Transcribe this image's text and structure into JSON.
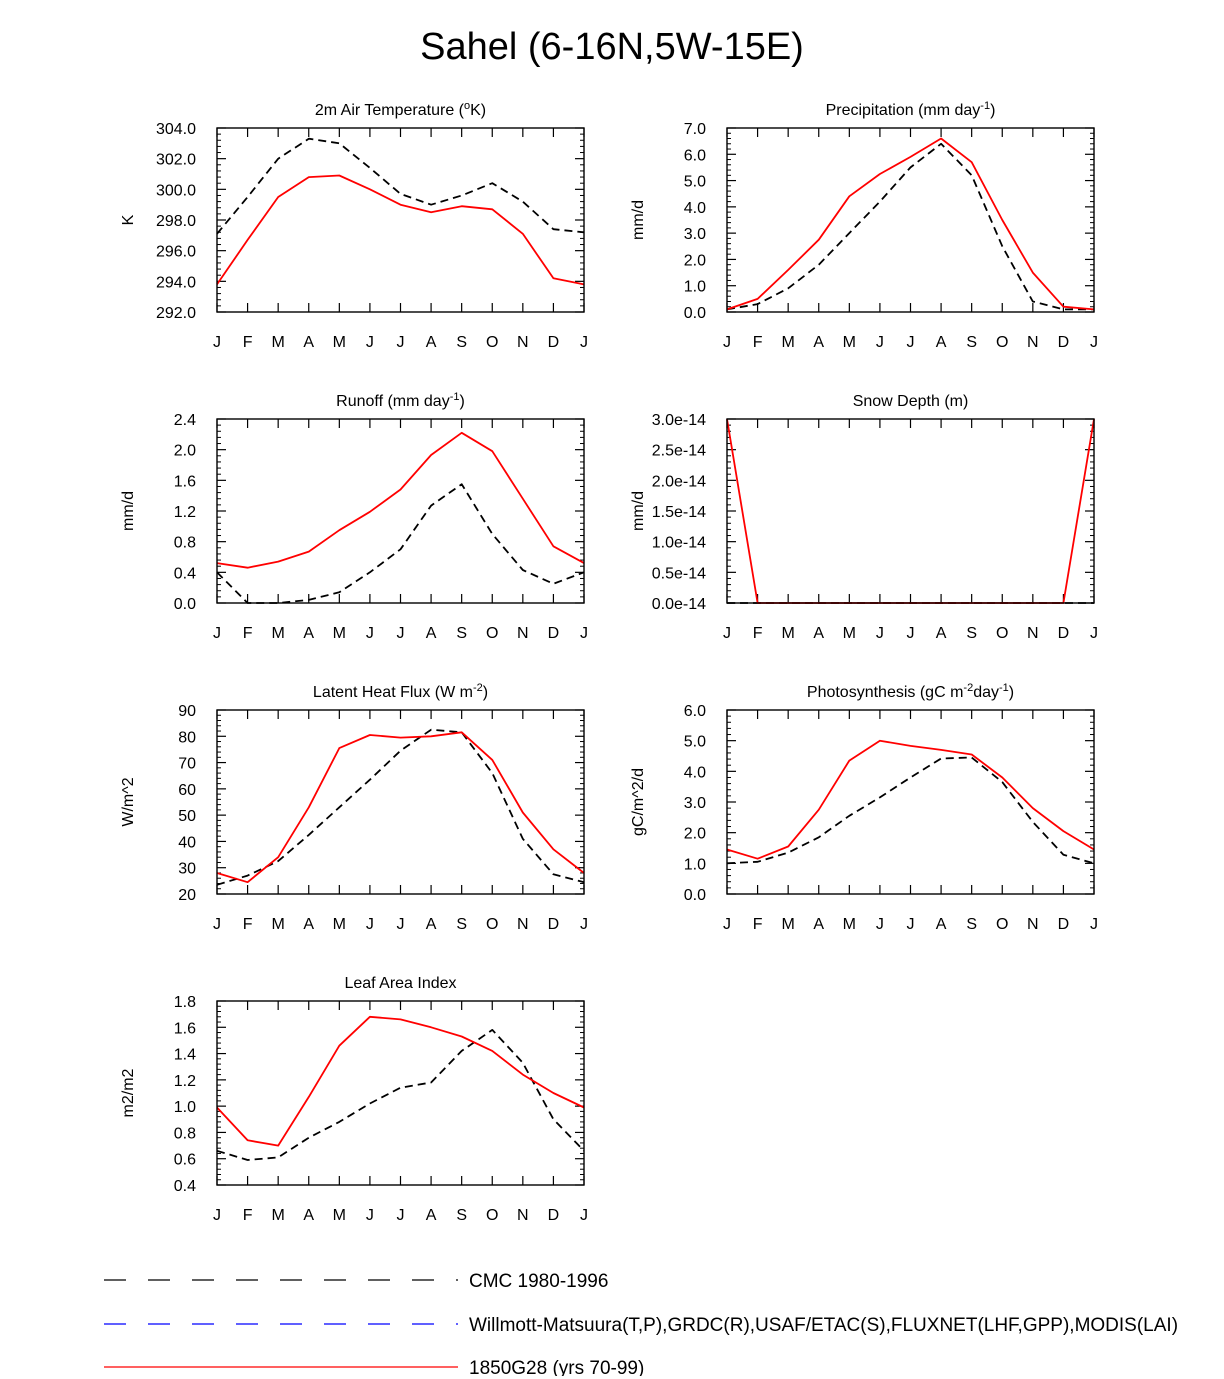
{
  "title": "Sahel (6-16N,5W-15E)",
  "months": [
    "J",
    "F",
    "M",
    "A",
    "M",
    "J",
    "J",
    "A",
    "S",
    "O",
    "N",
    "D",
    "J"
  ],
  "legend": [
    {
      "label": "CMC 1980-1996",
      "style": "dashed",
      "color": "#000000"
    },
    {
      "label": "Willmott-Matsuura(T,P),GRDC(R),USAF/ETAC(S),FLUXNET(LHF,GPP),MODIS(LAI)",
      "style": "dashed",
      "color": "#0000ff"
    },
    {
      "label": "1850G28 (yrs 70-99)",
      "style": "solid",
      "color": "#ff0000"
    }
  ],
  "chart_data": [
    {
      "type": "line",
      "title": "2m Air Temperature (oK)",
      "title_parts": [
        {
          "text": "2m Air Temperature ("
        },
        {
          "text": "o",
          "sup": true
        },
        {
          "text": "K)"
        }
      ],
      "ylabel": "K",
      "ylim": [
        292,
        304
      ],
      "yticks": [
        292,
        294,
        296,
        298,
        300,
        302,
        304
      ],
      "ytick_labels": [
        "292.0",
        "294.0",
        "296.0",
        "298.0",
        "300.0",
        "302.0",
        "304.0"
      ],
      "series": [
        {
          "name": "CMC 1980-1996",
          "color": "#000000",
          "dashed": true,
          "values": [
            297.1,
            299.5,
            302.0,
            303.3,
            303.0,
            301.4,
            299.7,
            299.0,
            299.6,
            300.4,
            299.2,
            297.4,
            297.2
          ]
        },
        {
          "name": "1850G28 (yrs 70-99)",
          "color": "#ff0000",
          "dashed": false,
          "values": [
            293.8,
            296.7,
            299.5,
            300.8,
            300.9,
            300.0,
            299.0,
            298.5,
            298.9,
            298.7,
            297.1,
            294.2,
            293.8
          ]
        }
      ]
    },
    {
      "type": "line",
      "title": "Precipitation (mm day-1)",
      "title_parts": [
        {
          "text": "Precipitation (mm day"
        },
        {
          "text": "-1",
          "sup": true
        },
        {
          "text": ")"
        }
      ],
      "ylabel": "mm/d",
      "ylim": [
        0,
        7
      ],
      "yticks": [
        0,
        1,
        2,
        3,
        4,
        5,
        6,
        7
      ],
      "ytick_labels": [
        "0.0",
        "1.0",
        "2.0",
        "3.0",
        "4.0",
        "5.0",
        "6.0",
        "7.0"
      ],
      "series": [
        {
          "name": "CMC 1980-1996",
          "color": "#000000",
          "dashed": true,
          "values": [
            0.1,
            0.3,
            0.9,
            1.8,
            3.0,
            4.2,
            5.5,
            6.4,
            5.2,
            2.5,
            0.4,
            0.1,
            0.1
          ]
        },
        {
          "name": "1850G28 (yrs 70-99)",
          "color": "#ff0000",
          "dashed": false,
          "values": [
            0.1,
            0.5,
            1.6,
            2.75,
            4.4,
            5.25,
            5.9,
            6.6,
            5.7,
            3.5,
            1.5,
            0.2,
            0.1
          ]
        }
      ]
    },
    {
      "type": "line",
      "title": "Runoff (mm day-1)",
      "title_parts": [
        {
          "text": "Runoff (mm day"
        },
        {
          "text": "-1",
          "sup": true
        },
        {
          "text": ")"
        }
      ],
      "ylabel": "mm/d",
      "ylim": [
        0,
        2.4
      ],
      "yticks": [
        0,
        0.4,
        0.8,
        1.2,
        1.6,
        2.0,
        2.4
      ],
      "ytick_labels": [
        "0.0",
        "0.4",
        "0.8",
        "1.2",
        "1.6",
        "2.0",
        "2.4"
      ],
      "series": [
        {
          "name": "CMC 1980-1996",
          "color": "#000000",
          "dashed": true,
          "values": [
            0.4,
            0.0,
            0.0,
            0.04,
            0.14,
            0.4,
            0.7,
            1.27,
            1.55,
            0.9,
            0.43,
            0.25,
            0.4
          ]
        },
        {
          "name": "1850G28 (yrs 70-99)",
          "color": "#ff0000",
          "dashed": false,
          "values": [
            0.52,
            0.46,
            0.54,
            0.67,
            0.95,
            1.19,
            1.48,
            1.93,
            2.22,
            1.98,
            1.36,
            0.74,
            0.52
          ]
        }
      ]
    },
    {
      "type": "line",
      "title": "Snow Depth (m)",
      "title_parts": [
        {
          "text": "Snow Depth (m)"
        }
      ],
      "ylabel": "mm/d",
      "ylim": [
        0,
        3e-14
      ],
      "yticks": [
        0,
        5e-15,
        1e-14,
        1.5e-14,
        2e-14,
        2.5e-14,
        3e-14
      ],
      "ytick_labels": [
        "0.0e-14",
        "0.5e-14",
        "1.0e-14",
        "1.5e-14",
        "2.0e-14",
        "2.5e-14",
        "3.0e-14"
      ],
      "series": [
        {
          "name": "CMC 1980-1996",
          "color": "#000000",
          "dashed": true,
          "values": [
            0,
            0,
            0,
            0,
            0,
            0,
            0,
            0,
            0,
            0,
            0,
            0,
            0
          ]
        },
        {
          "name": "1850G28 (yrs 70-99)",
          "color": "#ff0000",
          "dashed": false,
          "values": [
            3e-14,
            0,
            0,
            0,
            0,
            0,
            0,
            0,
            0,
            0,
            0,
            0,
            3e-14
          ]
        }
      ]
    },
    {
      "type": "line",
      "title": "Latent Heat Flux (W m-2)",
      "title_parts": [
        {
          "text": "Latent Heat Flux (W m"
        },
        {
          "text": "-2",
          "sup": true
        },
        {
          "text": ")"
        }
      ],
      "ylabel": "W/m^2",
      "ylim": [
        20,
        90
      ],
      "yticks": [
        20,
        30,
        40,
        50,
        60,
        70,
        80,
        90
      ],
      "ytick_labels": [
        "20",
        "30",
        "40",
        "50",
        "60",
        "70",
        "80",
        "90"
      ],
      "series": [
        {
          "name": "CMC 1980-1996",
          "color": "#000000",
          "dashed": true,
          "values": [
            23.5,
            27,
            32.5,
            42.5,
            53,
            63.5,
            74.5,
            82.5,
            81.5,
            66,
            41,
            27.5,
            24.5
          ]
        },
        {
          "name": "1850G28 (yrs 70-99)",
          "color": "#ff0000",
          "dashed": false,
          "values": [
            28,
            24.5,
            34,
            53,
            75.5,
            80.5,
            79.5,
            80,
            81.5,
            71,
            51,
            37,
            28
          ]
        }
      ]
    },
    {
      "type": "line",
      "title": "Photosynthesis (gC m-2day-1)",
      "title_parts": [
        {
          "text": "Photosynthesis (gC m"
        },
        {
          "text": "-2",
          "sup": true
        },
        {
          "text": "day"
        },
        {
          "text": "-1",
          "sup": true
        },
        {
          "text": ")"
        }
      ],
      "ylabel": "gC/m^2/d",
      "ylim": [
        0,
        6
      ],
      "yticks": [
        0,
        1,
        2,
        3,
        4,
        5,
        6
      ],
      "ytick_labels": [
        "0.0",
        "1.0",
        "2.0",
        "3.0",
        "4.0",
        "5.0",
        "6.0"
      ],
      "series": [
        {
          "name": "CMC 1980-1996",
          "color": "#000000",
          "dashed": true,
          "values": [
            1.0,
            1.05,
            1.35,
            1.85,
            2.55,
            3.15,
            3.8,
            4.42,
            4.45,
            3.65,
            2.35,
            1.28,
            1.0
          ]
        },
        {
          "name": "1850G28 (yrs 70-99)",
          "color": "#ff0000",
          "dashed": false,
          "values": [
            1.45,
            1.15,
            1.55,
            2.75,
            4.35,
            5.0,
            4.83,
            4.7,
            4.55,
            3.8,
            2.8,
            2.05,
            1.45
          ]
        }
      ]
    },
    {
      "type": "line",
      "title": "Leaf Area Index",
      "title_parts": [
        {
          "text": "Leaf Area Index"
        }
      ],
      "ylabel": "m2/m2",
      "ylim": [
        0.4,
        1.8
      ],
      "yticks": [
        0.4,
        0.6,
        0.8,
        1.0,
        1.2,
        1.4,
        1.6,
        1.8
      ],
      "ytick_labels": [
        "0.4",
        "0.6",
        "0.8",
        "1.0",
        "1.2",
        "1.4",
        "1.6",
        "1.8"
      ],
      "series": [
        {
          "name": "CMC 1980-1996",
          "color": "#000000",
          "dashed": true,
          "values": [
            0.66,
            0.59,
            0.61,
            0.76,
            0.88,
            1.02,
            1.14,
            1.18,
            1.42,
            1.58,
            1.33,
            0.9,
            0.66
          ]
        },
        {
          "name": "1850G28 (yrs 70-99)",
          "color": "#ff0000",
          "dashed": false,
          "values": [
            0.99,
            0.74,
            0.7,
            1.07,
            1.46,
            1.68,
            1.66,
            1.6,
            1.53,
            1.42,
            1.24,
            1.1,
            0.99
          ]
        }
      ]
    }
  ]
}
